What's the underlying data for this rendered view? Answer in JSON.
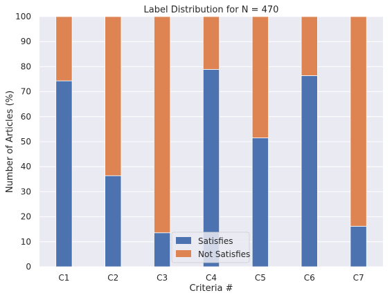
{
  "chart_data": {
    "type": "bar",
    "stacked": true,
    "title": "Label Distribution for N = 470",
    "xlabel": "Criteria #",
    "ylabel": "Number of Articles (%)",
    "categories": [
      "C1",
      "C2",
      "C3",
      "C4",
      "C5",
      "C6",
      "C7"
    ],
    "ylim": [
      0,
      100
    ],
    "yticks": [
      0,
      10,
      20,
      30,
      40,
      50,
      60,
      70,
      80,
      90,
      100
    ],
    "grid": true,
    "legend_position": "bottom-center",
    "series": [
      {
        "name": "Satisfies",
        "color": "#4c72b0",
        "values": [
          74.3,
          36.4,
          13.6,
          78.9,
          51.5,
          76.4,
          16.2
        ]
      },
      {
        "name": "Not Satisfies",
        "color": "#dd8452",
        "values": [
          25.7,
          63.6,
          86.4,
          21.1,
          48.5,
          23.6,
          83.8
        ]
      }
    ]
  }
}
